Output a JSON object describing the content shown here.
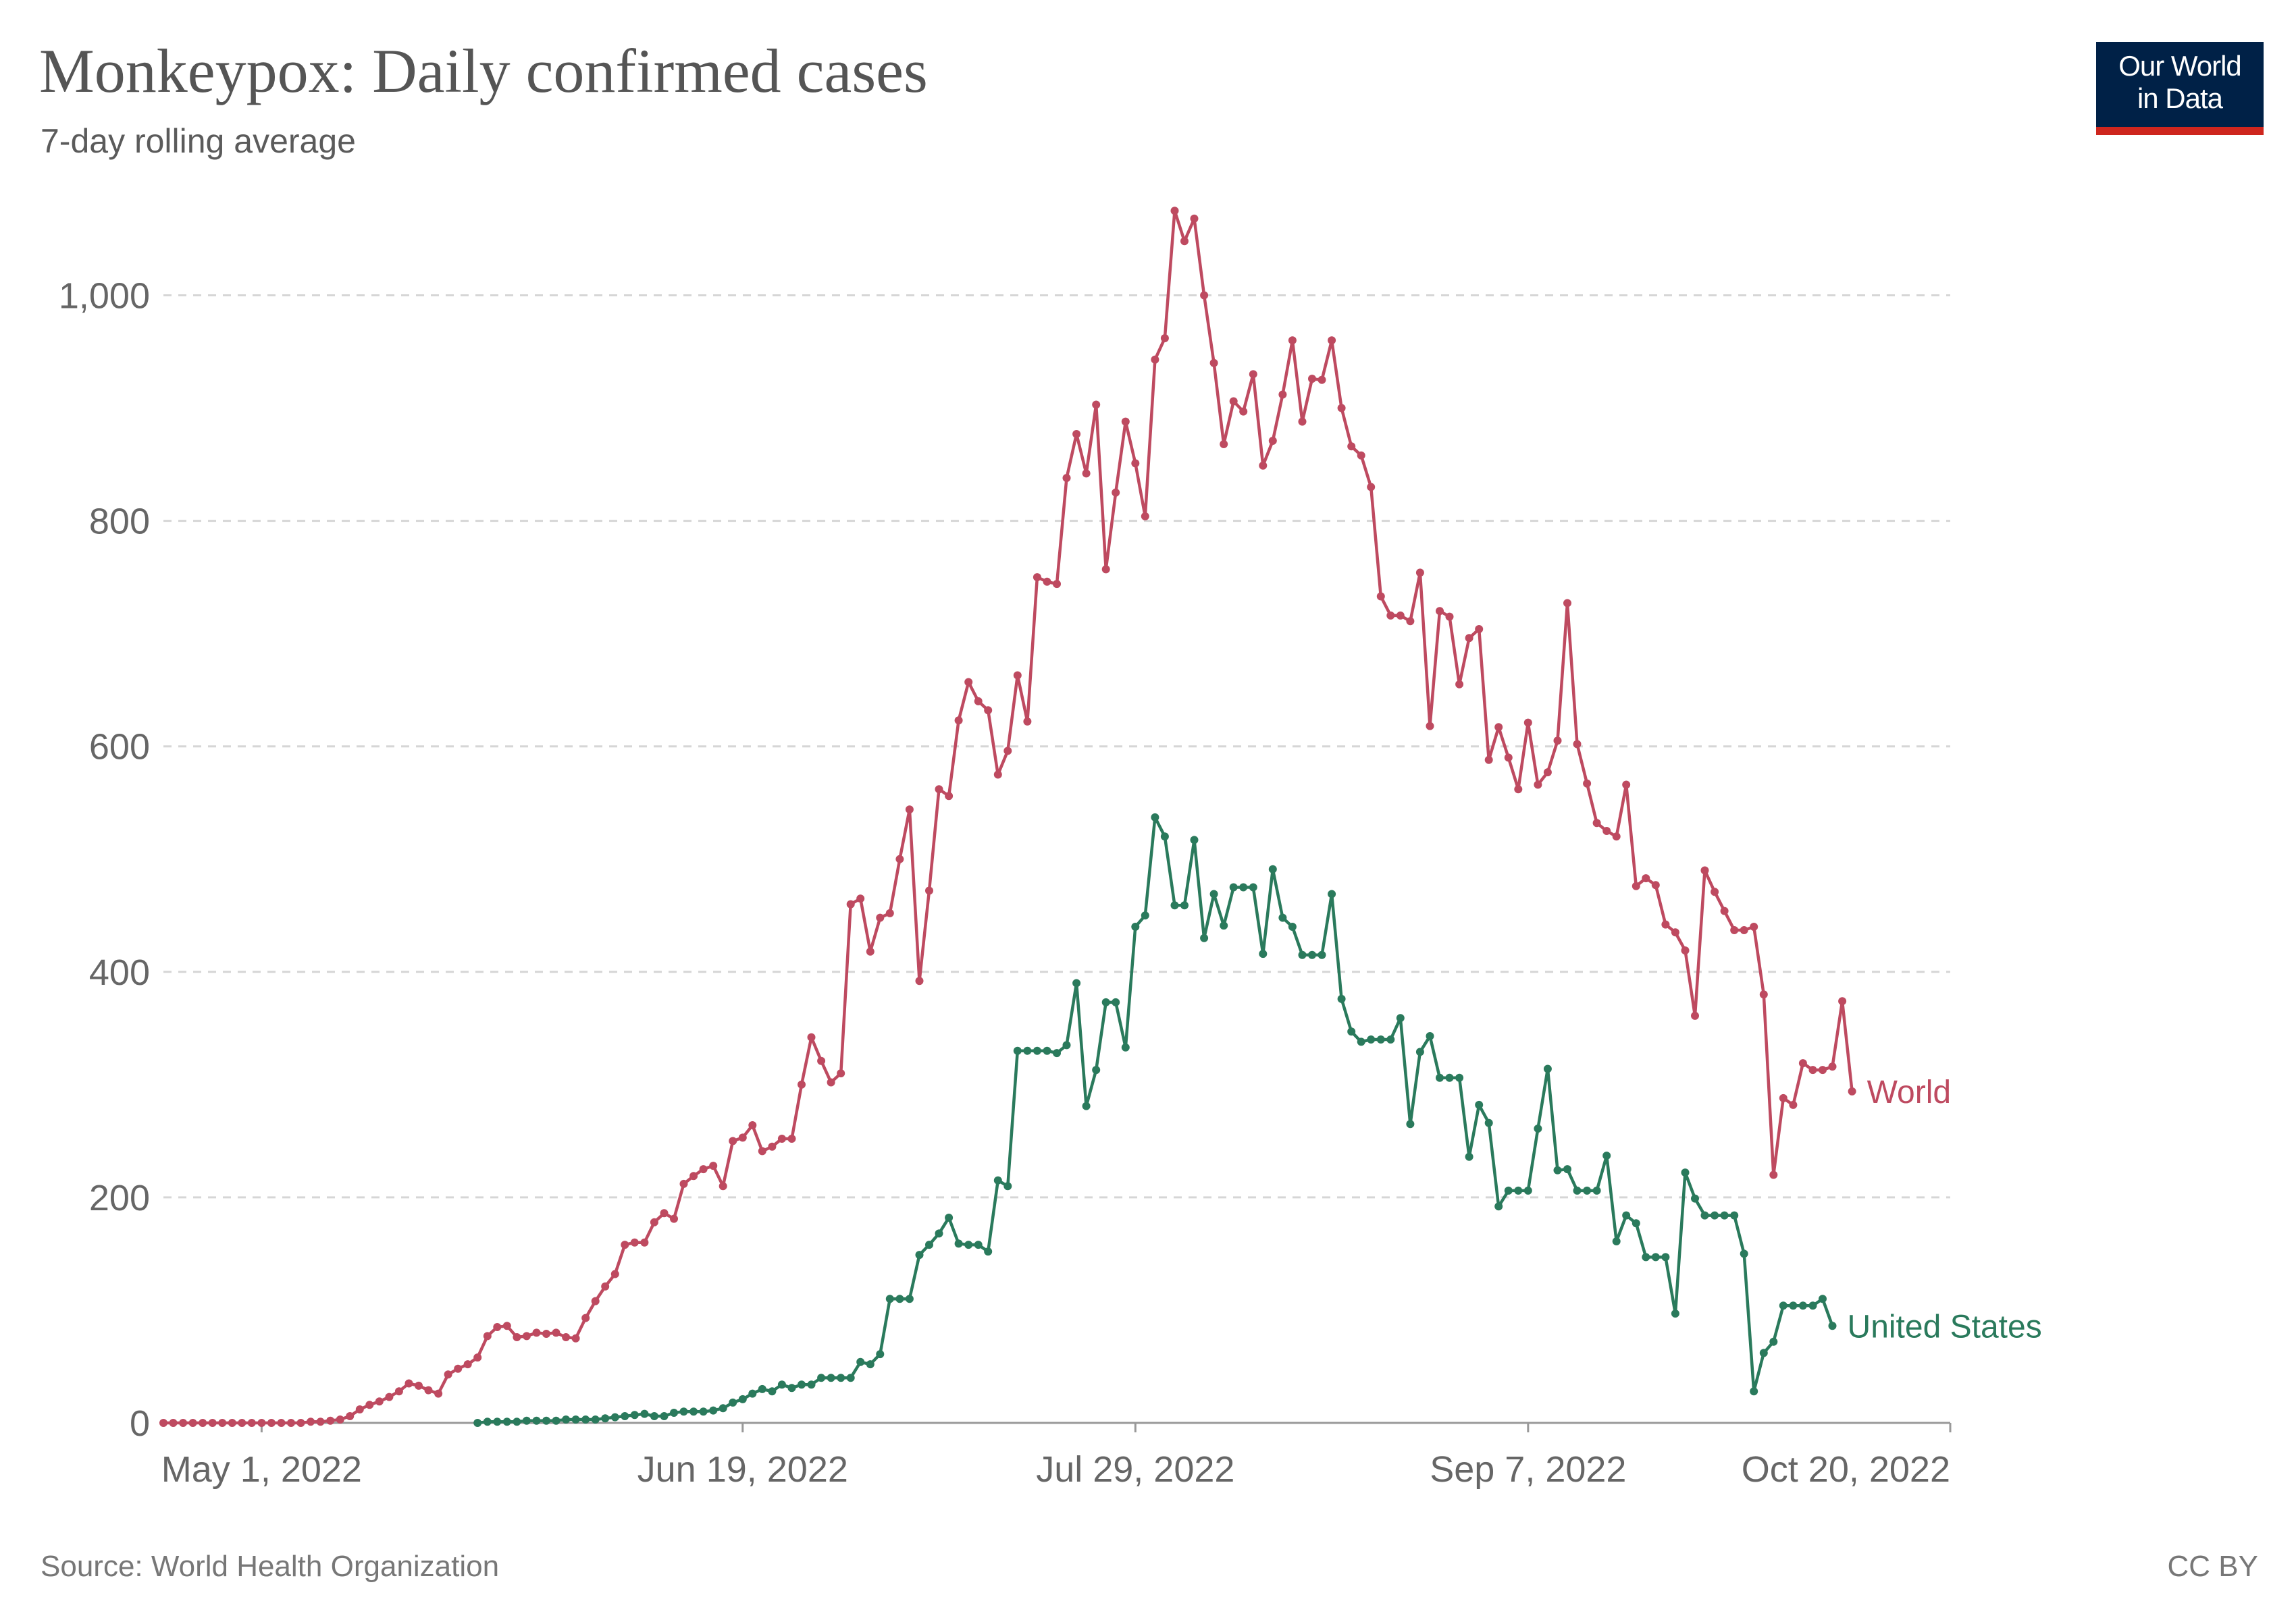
{
  "header": {
    "title": "Monkeypox: Daily confirmed cases",
    "subtitle": "7-day rolling average"
  },
  "logo": {
    "line1": "Our World",
    "line2": "in Data"
  },
  "footer": {
    "source": "Source: World Health Organization",
    "license": "CC BY"
  },
  "colors": {
    "world": "#be4a60",
    "united_states": "#2a7a5c",
    "grid": "#d6d6d6",
    "axis": "#999999"
  },
  "chart_data": {
    "type": "line",
    "title": "Monkeypox: Daily confirmed cases",
    "subtitle": "7-day rolling average",
    "x_start": "2022-04-21",
    "xlim": [
      "2022-04-21",
      "2022-10-20"
    ],
    "ylim": [
      0,
      1090
    ],
    "y_ticks": [
      0,
      200,
      400,
      600,
      800,
      1000
    ],
    "y_tick_labels": [
      "0",
      "200",
      "400",
      "600",
      "800",
      "1,000"
    ],
    "x_ticks": [
      "2022-05-01",
      "2022-06-19",
      "2022-07-29",
      "2022-09-07",
      "2022-10-20"
    ],
    "x_tick_labels": [
      "May 1, 2022",
      "Jun 19, 2022",
      "Jul 29, 2022",
      "Sep 7, 2022",
      "Oct 20, 2022"
    ],
    "grid": true,
    "series": [
      {
        "name": "World",
        "color": "#be4a60",
        "start": "2022-04-21",
        "values": [
          0,
          0,
          0,
          0,
          0,
          0,
          0,
          0,
          0,
          0,
          0,
          0,
          0,
          0,
          0,
          1,
          1,
          2,
          3,
          6,
          12,
          16,
          19,
          23,
          28,
          35,
          33,
          29,
          26,
          43,
          48,
          52,
          58,
          77,
          85,
          86,
          76,
          77,
          80,
          79,
          80,
          76,
          75,
          93,
          108,
          121,
          132,
          158,
          160,
          160,
          178,
          186,
          181,
          212,
          219,
          225,
          228,
          210,
          250,
          253,
          264,
          241,
          245,
          252,
          252,
          300,
          342,
          321,
          302,
          310,
          460,
          465,
          418,
          448,
          452,
          500,
          544,
          392,
          472,
          562,
          556,
          623,
          657,
          640,
          632,
          575,
          596,
          663,
          622,
          750,
          746,
          744,
          838,
          877,
          842,
          903,
          757,
          825,
          888,
          851,
          804,
          943,
          962,
          1075,
          1048,
          1068,
          1000,
          940,
          868,
          906,
          897,
          930,
          849,
          871,
          912,
          960,
          888,
          926,
          925,
          960,
          900,
          866,
          858,
          830,
          733,
          716,
          716,
          711,
          754,
          618,
          720,
          715,
          655,
          696,
          704,
          588,
          617,
          590,
          562,
          621,
          566,
          577,
          605,
          727,
          602,
          567,
          532,
          525,
          520,
          566,
          476,
          483,
          477,
          442,
          435,
          419,
          361,
          490,
          471,
          454,
          437,
          437,
          440,
          380,
          220,
          288,
          282,
          319,
          313,
          313,
          316,
          374,
          294
        ]
      },
      {
        "name": "United States",
        "color": "#2a7a5c",
        "start": "2022-05-23",
        "values": [
          0,
          1,
          1,
          1,
          1,
          2,
          2,
          2,
          2,
          3,
          3,
          3,
          3,
          4,
          5,
          6,
          7,
          8,
          6,
          6,
          9,
          10,
          10,
          10,
          11,
          13,
          18,
          21,
          26,
          30,
          28,
          34,
          31,
          34,
          34,
          40,
          40,
          40,
          40,
          54,
          52,
          61,
          110,
          110,
          110,
          149,
          158,
          168,
          182,
          159,
          158,
          158,
          152,
          215,
          210,
          330,
          330,
          330,
          330,
          328,
          335,
          390,
          281,
          313,
          373,
          373,
          333,
          440,
          450,
          537,
          520,
          459,
          459,
          517,
          430,
          469,
          441,
          475,
          475,
          475,
          416,
          491,
          448,
          440,
          415,
          415,
          415,
          469,
          376,
          347,
          338,
          340,
          340,
          340,
          359,
          265,
          329,
          343,
          306,
          306,
          306,
          236,
          282,
          266,
          192,
          206,
          206,
          206,
          261,
          314,
          224,
          225,
          206,
          206,
          206,
          237,
          161,
          184,
          177,
          147,
          147,
          147,
          97,
          222,
          199,
          184,
          184,
          184,
          184,
          150,
          28,
          62,
          72,
          104,
          104,
          104,
          104,
          110,
          86
        ]
      }
    ]
  }
}
